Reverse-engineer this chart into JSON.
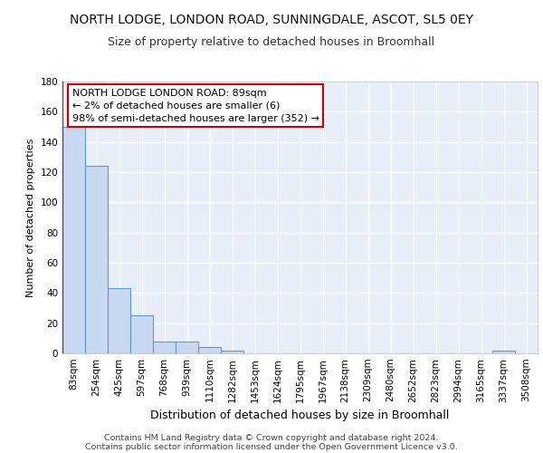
{
  "title": "NORTH LODGE, LONDON ROAD, SUNNINGDALE, ASCOT, SL5 0EY",
  "subtitle": "Size of property relative to detached houses in Broomhall",
  "xlabel": "Distribution of detached houses by size in Broomhall",
  "ylabel": "Number of detached properties",
  "bin_labels": [
    "83sqm",
    "254sqm",
    "425sqm",
    "597sqm",
    "768sqm",
    "939sqm",
    "1110sqm",
    "1282sqm",
    "1453sqm",
    "1624sqm",
    "1795sqm",
    "1967sqm",
    "2138sqm",
    "2309sqm",
    "2480sqm",
    "2652sqm",
    "2823sqm",
    "2994sqm",
    "3165sqm",
    "3337sqm",
    "3508sqm"
  ],
  "bar_heights": [
    150,
    124,
    43,
    25,
    8,
    8,
    4,
    2,
    0,
    0,
    0,
    0,
    0,
    0,
    0,
    0,
    0,
    0,
    0,
    2,
    0
  ],
  "bar_color": "#c8d8f0",
  "bar_edge_color": "#5b9bd5",
  "background_color": "#e8eef8",
  "grid_color": "#ffffff",
  "annotation_title": "NORTH LODGE LONDON ROAD: 89sqm",
  "annotation_line1": "← 2% of detached houses are smaller (6)",
  "annotation_line2": "98% of semi-detached houses are larger (352) →",
  "annotation_box_color": "#ffffff",
  "annotation_border_color": "#cc0000",
  "footer_line1": "Contains HM Land Registry data © Crown copyright and database right 2024.",
  "footer_line2": "Contains public sector information licensed under the Open Government Licence v3.0.",
  "ylim": [
    0,
    180
  ],
  "yticks": [
    0,
    20,
    40,
    60,
    80,
    100,
    120,
    140,
    160,
    180
  ],
  "title_fontsize": 10,
  "subtitle_fontsize": 9,
  "ylabel_fontsize": 8,
  "xlabel_fontsize": 9,
  "tick_fontsize": 7.5,
  "annotation_fontsize": 8,
  "footer_fontsize": 6.8
}
